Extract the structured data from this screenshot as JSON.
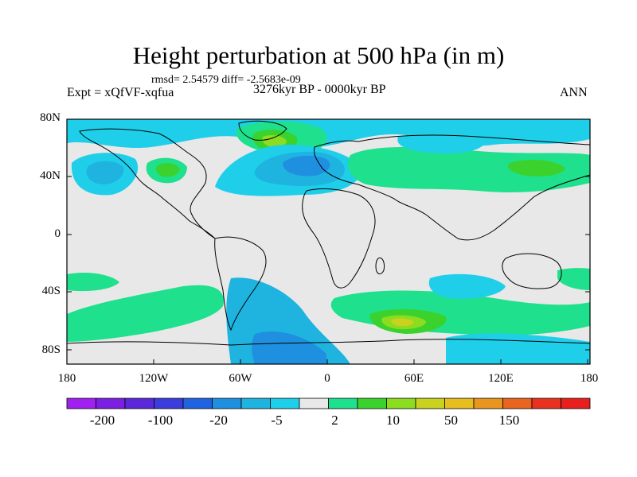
{
  "title": "Height perturbation at 500 hPa (in m)",
  "stats": "rmsd= 2.54579 diff= -2.5683e-09",
  "experiment": "Expt = xQfVF-xqfua",
  "period": "3276kyr BP - 0000kyr BP",
  "season": "ANN",
  "axes": {
    "y_ticks": [
      {
        "label": "80N"
      },
      {
        "label": "40N"
      },
      {
        "label": "0"
      },
      {
        "label": "40S"
      },
      {
        "label": "80S"
      }
    ],
    "x_ticks": [
      {
        "label": "180"
      },
      {
        "label": "120W"
      },
      {
        "label": "60W"
      },
      {
        "label": "0"
      },
      {
        "label": "60E"
      },
      {
        "label": "120E"
      },
      {
        "label": "180"
      }
    ]
  },
  "colorbar": {
    "colors": [
      "#a020f0",
      "#7b1fe0",
      "#5a28d8",
      "#3c3cdc",
      "#1f63e0",
      "#1f90e0",
      "#1fb4e0",
      "#1fcfea",
      "#e8e8e8",
      "#1fe08c",
      "#3cd22d",
      "#8cdc1f",
      "#c8d21f",
      "#e6be1f",
      "#e8961f",
      "#e8641f",
      "#e8321f",
      "#e81f1f"
    ],
    "labels": [
      "-200",
      "-100",
      "-20",
      "-5",
      "2",
      "10",
      "50",
      "150"
    ]
  },
  "colors": {
    "background": "#e8e8e8",
    "light_blue": "#1fcfea",
    "mid_blue": "#1fb4e0",
    "blue": "#1f90e0",
    "dark_blue": "#1f63e0",
    "aqua_green": "#1fe08c",
    "green": "#3cd22d",
    "yellow_green": "#8cdc1f",
    "yellow": "#c8d21f"
  }
}
